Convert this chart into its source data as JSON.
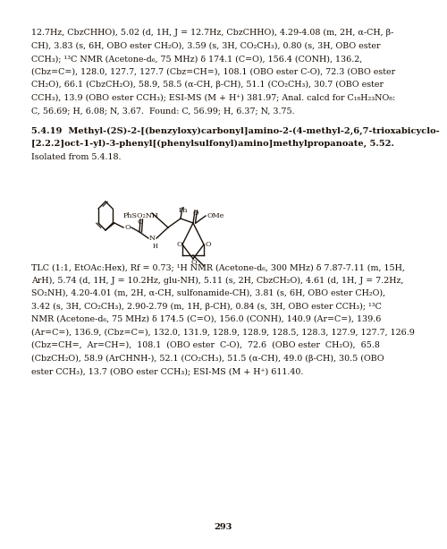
{
  "background_color": "#ffffff",
  "text_color": "#1a1008",
  "font_size_body": 6.8,
  "font_size_bold": 7.1,
  "page_number": "293",
  "top_lines": [
    "12.7Hz, CbzCHHO), 5.02 (d, 1H, J = 12.7Hz, CbzCHHO), 4.29-4.08 (m, 2H, α-CH, β-",
    "CH), 3.83 (s, 6H, OBO ester CH₂O), 3.59 (s, 3H, CO₂CH₃), 0.80 (s, 3H, OBO ester",
    "CCH₃); ¹³C NMR (Acetone-d₆, 75 MHz) δ 174.1 (C=O), 156.4 (CONH), 136.2,",
    "(Cbz=C=), 128.0, 127.7, 127.7 (Cbz=CH=), 108.1 (OBO ester C-O), 72.3 (OBO ester",
    "CH₂O), 66.1 (CbzCH₂O), 58.9, 58.5 (α-CH, β-CH), 51.1 (CO₂CH₃), 30.7 (OBO ester",
    "CCH₃), 13.9 (OBO ester CCH₃); ESI-MS (M + H⁺) 381.97; Anal. calcd for C₁₈H₂₃NO₈:",
    "C, 56.69; H, 6.08; N, 3.67.  Found: C, 56.99; H, 6.37; N, 3.75."
  ],
  "section_bold1": "5.4.19  Methyl-(2S)-2-[(benzyloxy)carbonyl]amino-2-(4-methyl-2,6,7-trioxabicyclo-",
  "section_bold2": "[2.2.2]oct-1-yl)-3-phenyl[(phenylsulfonyl)amino]methylpropanoate, 5.52.",
  "section_normal": "Isolated from 5.4.18.",
  "bottom_lines": [
    "TLC (1:1, EtOAc:Hex), Rf = 0.73; ¹H NMR (Acetone-d₆, 300 MHz) δ 7.87-7.11 (m, 15H,",
    "ArH), 5.74 (d, 1H, J = 10.2Hz, glu-NH), 5.11 (s, 2H, CbzCH₂O), 4.61 (d, 1H, J = 7.2Hz,",
    "SO₂NH), 4.20-4.01 (m, 2H, α-CH, sulfonamide-CH), 3.81 (s, 6H, OBO ester CH₂O),",
    "3.42 (s, 3H, CO₂CH₃), 2.90-2.79 (m, 1H, β-CH), 0.84 (s, 3H, OBO ester CCH₃); ¹³C",
    "NMR (Acetone-d₆, 75 MHz) δ 174.5 (C=O), 156.0 (CONH), 140.9 (Ar=C=), 139.6",
    "(Ar=C=), 136.9, (Cbz=C=), 132.0, 131.9, 128.9, 128.9, 128.5, 128.3, 127.9, 127.7, 126.9",
    "(Cbz=CH=,  Ar=CH=),  108.1  (OBO ester  C-O),  72.6  (OBO ester  CH₂O),  65.8",
    "(CbzCH₂O), 58.9 (ArCHNH-), 52.1 (CO₂CH₃), 51.5 (α-CH), 49.0 (β-CH), 30.5 (OBO",
    "ester CCH₃), 13.7 (OBO ester CCH₃); ESI-MS (M + H⁺) 611.40."
  ],
  "struct_ph_so2nh": "PhSO₂NH",
  "struct_ph": "Ph",
  "struct_o": "O",
  "struct_ome": "OMe",
  "struct_n": "N",
  "struct_h": "H",
  "struct_o2": "O",
  "struct_o3": "O",
  "struct_o4": "O"
}
